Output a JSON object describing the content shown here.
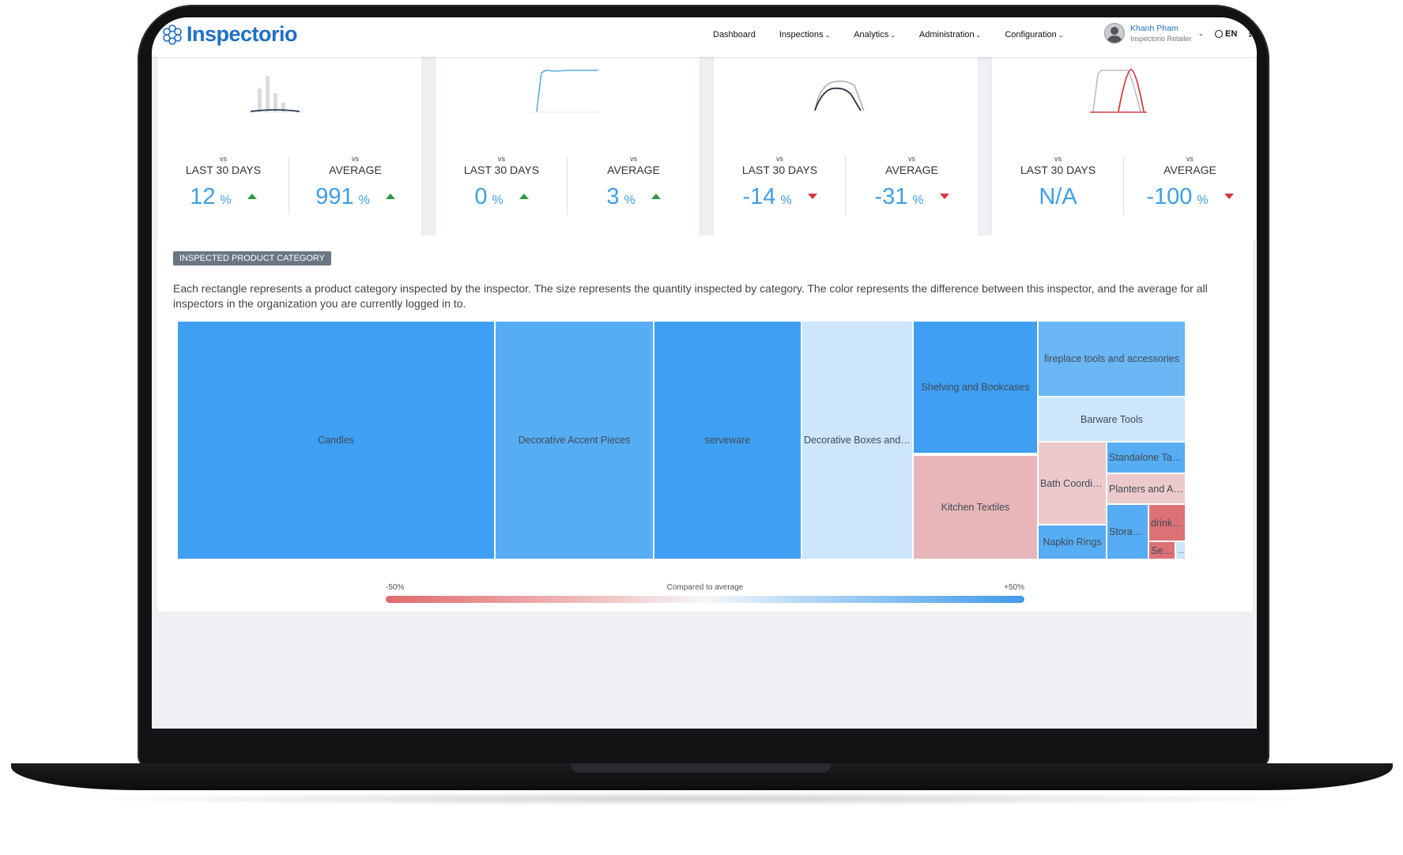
{
  "app": {
    "logo_text": "Inspectorio",
    "brand_color": "#1f6fc5"
  },
  "nav": {
    "items": [
      {
        "label": "Dashboard",
        "has_menu": false
      },
      {
        "label": "Inspections",
        "has_menu": true
      },
      {
        "label": "Analytics",
        "has_menu": true
      },
      {
        "label": "Administration",
        "has_menu": true
      },
      {
        "label": "Configuration",
        "has_menu": true
      }
    ],
    "user_name": "Khanh Pham",
    "user_org": "Inspectorio Retailer",
    "language": "EN"
  },
  "kpis": [
    {
      "left": {
        "vs": "vs",
        "label": "LAST 30 DAYS",
        "value": "12",
        "unit": "%",
        "trend": "up"
      },
      "right": {
        "vs": "vs",
        "label": "AVERAGE",
        "value": "991",
        "unit": "%",
        "trend": "up"
      }
    },
    {
      "left": {
        "vs": "vs",
        "label": "LAST 30 DAYS",
        "value": "0",
        "unit": "%",
        "trend": "up"
      },
      "right": {
        "vs": "vs",
        "label": "AVERAGE",
        "value": "3",
        "unit": "%",
        "trend": "up"
      }
    },
    {
      "left": {
        "vs": "vs",
        "label": "LAST 30 DAYS",
        "value": "-14",
        "unit": "%",
        "trend": "down"
      },
      "right": {
        "vs": "vs",
        "label": "AVERAGE",
        "value": "-31",
        "unit": "%",
        "trend": "down"
      }
    },
    {
      "left": {
        "vs": "vs",
        "label": "LAST 30 DAYS",
        "value": "N/A",
        "unit": "",
        "trend": "none"
      },
      "right": {
        "vs": "vs",
        "label": "AVERAGE",
        "value": "-100",
        "unit": "%",
        "trend": "down"
      }
    }
  ],
  "category": {
    "badge": "INSPECTED PRODUCT CATEGORY",
    "description": "Each rectangle represents a product category inspected by the inspector. The size represents the quantity inspected by category. The color represents the difference between this inspector, and the average for all inspectors in the organization you are currently logged in to.",
    "tiles": [
      {
        "label": "Candles",
        "color": "#3f9ff2"
      },
      {
        "label": "Decorative Accent Pieces",
        "color": "#56adf3"
      },
      {
        "label": "serveware",
        "color": "#3f9ff2"
      },
      {
        "label": "Decorative Boxes and B...",
        "color": "#cde6fb"
      },
      {
        "label": "Shelving and Bookcases",
        "color": "#3f9ff2"
      },
      {
        "label": "Kitchen Textiles",
        "color": "#e8b6b8"
      },
      {
        "label": "fireplace tools and accessories",
        "color": "#6bb6f4"
      },
      {
        "label": "Barware Tools",
        "color": "#cde6fb"
      },
      {
        "label": "Bath Coordina...",
        "color": "#eccacb"
      },
      {
        "label": "Standalone Tabl...",
        "color": "#56adf3"
      },
      {
        "label": "Planters and Ac...",
        "color": "#eccacb"
      },
      {
        "label": "Napkin Rings",
        "color": "#56adf3"
      },
      {
        "label": "Storage...",
        "color": "#56adf3"
      },
      {
        "label": "drinkw...",
        "color": "#dc7276"
      },
      {
        "label": "Sea...",
        "color": "#dc7276"
      },
      {
        "label": "...",
        "color": "#cde6fb"
      }
    ],
    "legend": {
      "min": "-50%",
      "title": "Compared to average",
      "max": "+50%"
    }
  }
}
